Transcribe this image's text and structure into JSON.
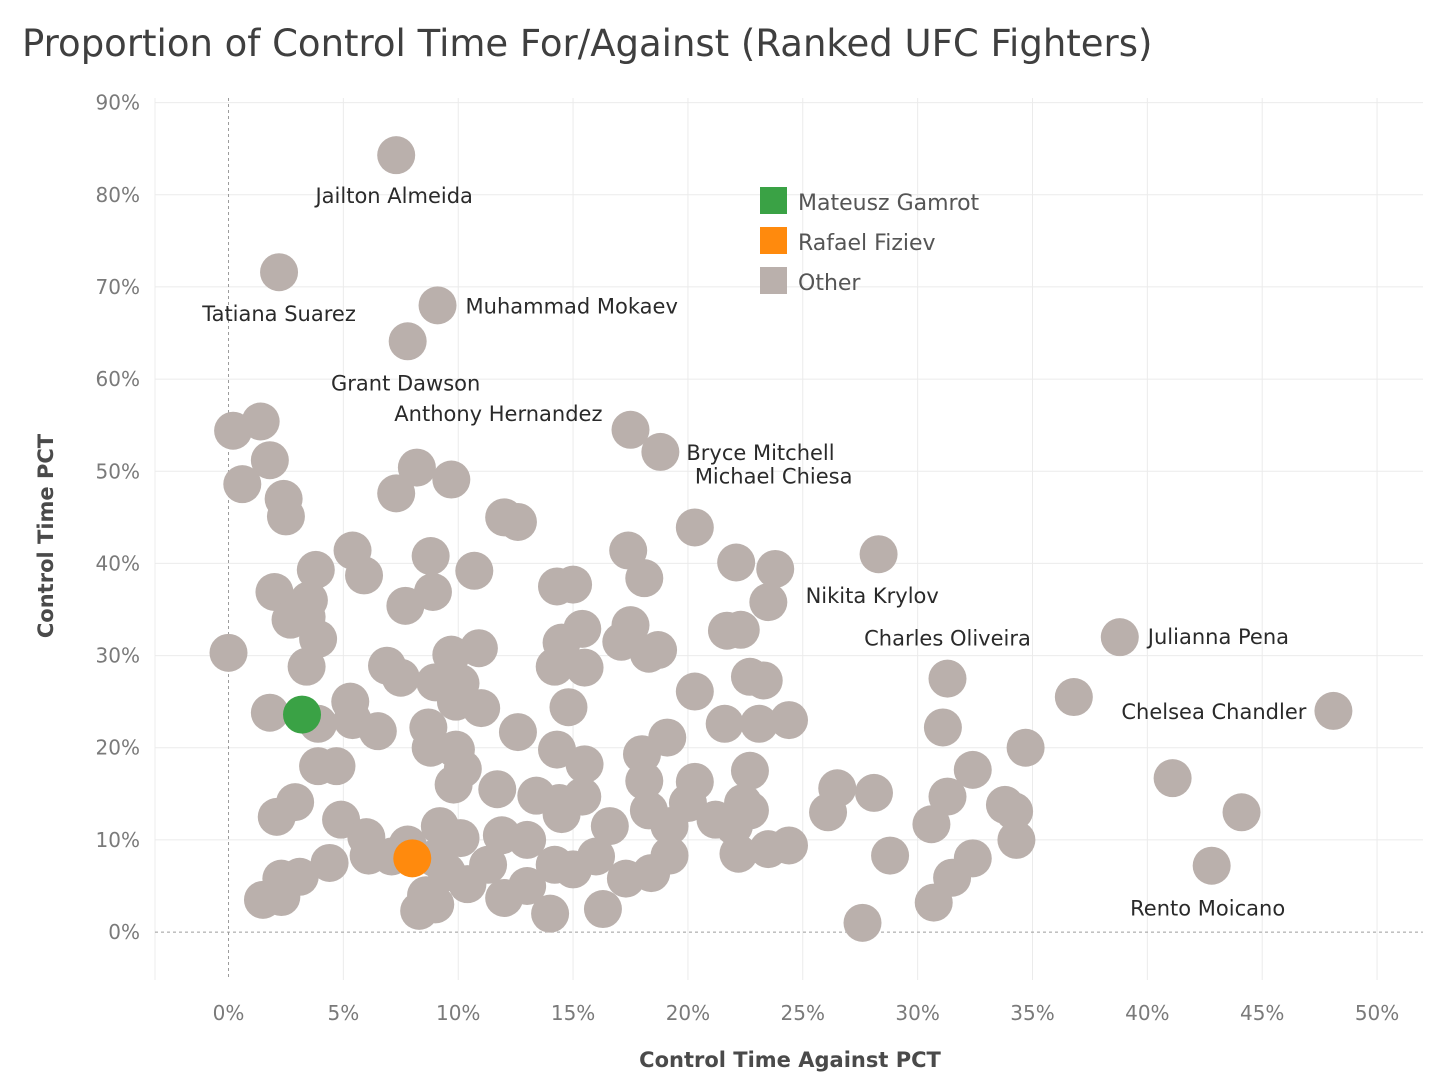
{
  "title": "Proportion of Control Time For/Against (Ranked UFC Fighters)",
  "chart_data": {
    "type": "scatter",
    "title": "Proportion of Control Time For/Against (Ranked UFC Fighters)",
    "xlabel": "Control Time Against PCT",
    "ylabel": "Control Time PCT",
    "xlim": [
      -0.032,
      0.52
    ],
    "ylim": [
      -0.052,
      0.905
    ],
    "x_ticks": [
      {
        "value": 0.0,
        "label": "0%"
      },
      {
        "value": 0.05,
        "label": "5%"
      },
      {
        "value": 0.1,
        "label": "10%"
      },
      {
        "value": 0.15,
        "label": "15%"
      },
      {
        "value": 0.2,
        "label": "20%"
      },
      {
        "value": 0.25,
        "label": "25%"
      },
      {
        "value": 0.3,
        "label": "30%"
      },
      {
        "value": 0.35,
        "label": "35%"
      },
      {
        "value": 0.4,
        "label": "40%"
      },
      {
        "value": 0.45,
        "label": "45%"
      },
      {
        "value": 0.5,
        "label": "50%"
      }
    ],
    "y_ticks": [
      {
        "value": 0.0,
        "label": "0%"
      },
      {
        "value": 0.1,
        "label": "10%"
      },
      {
        "value": 0.2,
        "label": "20%"
      },
      {
        "value": 0.3,
        "label": "30%"
      },
      {
        "value": 0.4,
        "label": "40%"
      },
      {
        "value": 0.5,
        "label": "50%"
      },
      {
        "value": 0.6,
        "label": "60%"
      },
      {
        "value": 0.7,
        "label": "70%"
      },
      {
        "value": 0.8,
        "label": "80%"
      },
      {
        "value": 0.9,
        "label": "90%"
      }
    ],
    "grid": true,
    "zero_reference_lines": true,
    "legend": {
      "placement": "top-center",
      "entries": [
        {
          "name": "Mateusz Gamrot",
          "color": "#3aa245"
        },
        {
          "name": "Rafael Fiziev",
          "color": "#ff8a0d"
        },
        {
          "name": "Other",
          "color": "#bab0ac"
        }
      ]
    },
    "series": [
      {
        "name": "Mateusz Gamrot",
        "color": "#3aa245",
        "points": [
          {
            "x": 0.032,
            "y": 0.236
          }
        ]
      },
      {
        "name": "Rafael Fiziev",
        "color": "#ff8a0d",
        "points": [
          {
            "x": 0.08,
            "y": 0.08
          }
        ]
      },
      {
        "name": "Other",
        "color": "#bab0ac",
        "points": [
          {
            "x": 0.073,
            "y": 0.843,
            "label": "Jailton Almeida"
          },
          {
            "x": 0.022,
            "y": 0.716,
            "label": "Tatiana Suarez"
          },
          {
            "x": 0.091,
            "y": 0.68,
            "label": "Muhammad Mokaev"
          },
          {
            "x": 0.078,
            "y": 0.641,
            "label": "Grant Dawson"
          },
          {
            "x": 0.175,
            "y": 0.545,
            "label": "Anthony Hernandez"
          },
          {
            "x": 0.188,
            "y": 0.521,
            "label": "Bryce Mitchell"
          },
          {
            "x": 0.203,
            "y": 0.439,
            "label": "Michael Chiesa"
          },
          {
            "x": 0.283,
            "y": 0.41,
            "label": "Nikita Krylov"
          },
          {
            "x": 0.313,
            "y": 0.275,
            "label": "Charles Oliveira"
          },
          {
            "x": 0.388,
            "y": 0.32,
            "label": "Julianna Pena"
          },
          {
            "x": 0.481,
            "y": 0.24,
            "label": "Chelsea Chandler"
          },
          {
            "x": 0.428,
            "y": 0.072,
            "label": "Rento Moicano"
          },
          {
            "x": 0.014,
            "y": 0.554
          },
          {
            "x": 0.002,
            "y": 0.544
          },
          {
            "x": 0.018,
            "y": 0.512
          },
          {
            "x": 0.006,
            "y": 0.486
          },
          {
            "x": 0.024,
            "y": 0.47
          },
          {
            "x": 0.025,
            "y": 0.451
          },
          {
            "x": 0.0,
            "y": 0.303
          },
          {
            "x": 0.02,
            "y": 0.369
          },
          {
            "x": 0.038,
            "y": 0.393
          },
          {
            "x": 0.035,
            "y": 0.36
          },
          {
            "x": 0.027,
            "y": 0.339
          },
          {
            "x": 0.034,
            "y": 0.342
          },
          {
            "x": 0.039,
            "y": 0.318
          },
          {
            "x": 0.034,
            "y": 0.288
          },
          {
            "x": 0.018,
            "y": 0.238
          },
          {
            "x": 0.039,
            "y": 0.226
          },
          {
            "x": 0.039,
            "y": 0.18
          },
          {
            "x": 0.047,
            "y": 0.18
          },
          {
            "x": 0.021,
            "y": 0.125
          },
          {
            "x": 0.029,
            "y": 0.141
          },
          {
            "x": 0.054,
            "y": 0.414
          },
          {
            "x": 0.059,
            "y": 0.387
          },
          {
            "x": 0.053,
            "y": 0.25
          },
          {
            "x": 0.054,
            "y": 0.23
          },
          {
            "x": 0.065,
            "y": 0.218
          },
          {
            "x": 0.049,
            "y": 0.122
          },
          {
            "x": 0.06,
            "y": 0.103
          },
          {
            "x": 0.061,
            "y": 0.083
          },
          {
            "x": 0.044,
            "y": 0.075
          },
          {
            "x": 0.031,
            "y": 0.06
          },
          {
            "x": 0.023,
            "y": 0.058
          },
          {
            "x": 0.015,
            "y": 0.035
          },
          {
            "x": 0.023,
            "y": 0.038
          },
          {
            "x": 0.069,
            "y": 0.289
          },
          {
            "x": 0.075,
            "y": 0.276
          },
          {
            "x": 0.077,
            "y": 0.354
          },
          {
            "x": 0.073,
            "y": 0.476
          },
          {
            "x": 0.082,
            "y": 0.504
          },
          {
            "x": 0.097,
            "y": 0.491
          },
          {
            "x": 0.088,
            "y": 0.408
          },
          {
            "x": 0.089,
            "y": 0.369
          },
          {
            "x": 0.107,
            "y": 0.392
          },
          {
            "x": 0.097,
            "y": 0.301
          },
          {
            "x": 0.109,
            "y": 0.308
          },
          {
            "x": 0.09,
            "y": 0.271
          },
          {
            "x": 0.101,
            "y": 0.27
          },
          {
            "x": 0.099,
            "y": 0.25
          },
          {
            "x": 0.11,
            "y": 0.243
          },
          {
            "x": 0.087,
            "y": 0.222
          },
          {
            "x": 0.088,
            "y": 0.2
          },
          {
            "x": 0.099,
            "y": 0.198
          },
          {
            "x": 0.102,
            "y": 0.177
          },
          {
            "x": 0.098,
            "y": 0.16
          },
          {
            "x": 0.092,
            "y": 0.115
          },
          {
            "x": 0.101,
            "y": 0.102
          },
          {
            "x": 0.078,
            "y": 0.095
          },
          {
            "x": 0.071,
            "y": 0.082
          },
          {
            "x": 0.09,
            "y": 0.08
          },
          {
            "x": 0.095,
            "y": 0.065
          },
          {
            "x": 0.104,
            "y": 0.052
          },
          {
            "x": 0.086,
            "y": 0.04
          },
          {
            "x": 0.09,
            "y": 0.03
          },
          {
            "x": 0.083,
            "y": 0.023
          },
          {
            "x": 0.12,
            "y": 0.45
          },
          {
            "x": 0.126,
            "y": 0.445
          },
          {
            "x": 0.126,
            "y": 0.217
          },
          {
            "x": 0.117,
            "y": 0.155
          },
          {
            "x": 0.119,
            "y": 0.105
          },
          {
            "x": 0.13,
            "y": 0.1
          },
          {
            "x": 0.113,
            "y": 0.073
          },
          {
            "x": 0.13,
            "y": 0.05
          },
          {
            "x": 0.12,
            "y": 0.037
          },
          {
            "x": 0.14,
            "y": 0.02
          },
          {
            "x": 0.143,
            "y": 0.375
          },
          {
            "x": 0.15,
            "y": 0.377
          },
          {
            "x": 0.145,
            "y": 0.314
          },
          {
            "x": 0.154,
            "y": 0.329
          },
          {
            "x": 0.142,
            "y": 0.288
          },
          {
            "x": 0.155,
            "y": 0.287
          },
          {
            "x": 0.148,
            "y": 0.244
          },
          {
            "x": 0.143,
            "y": 0.198
          },
          {
            "x": 0.155,
            "y": 0.182
          },
          {
            "x": 0.134,
            "y": 0.148
          },
          {
            "x": 0.144,
            "y": 0.14
          },
          {
            "x": 0.154,
            "y": 0.147
          },
          {
            "x": 0.145,
            "y": 0.128
          },
          {
            "x": 0.142,
            "y": 0.073
          },
          {
            "x": 0.15,
            "y": 0.068
          },
          {
            "x": 0.16,
            "y": 0.082
          },
          {
            "x": 0.166,
            "y": 0.115
          },
          {
            "x": 0.163,
            "y": 0.025
          },
          {
            "x": 0.174,
            "y": 0.414
          },
          {
            "x": 0.181,
            "y": 0.384
          },
          {
            "x": 0.171,
            "y": 0.315
          },
          {
            "x": 0.175,
            "y": 0.333
          },
          {
            "x": 0.183,
            "y": 0.302
          },
          {
            "x": 0.187,
            "y": 0.306
          },
          {
            "x": 0.18,
            "y": 0.193
          },
          {
            "x": 0.191,
            "y": 0.211
          },
          {
            "x": 0.181,
            "y": 0.164
          },
          {
            "x": 0.183,
            "y": 0.132
          },
          {
            "x": 0.192,
            "y": 0.115
          },
          {
            "x": 0.192,
            "y": 0.083
          },
          {
            "x": 0.173,
            "y": 0.058
          },
          {
            "x": 0.184,
            "y": 0.064
          },
          {
            "x": 0.203,
            "y": 0.261
          },
          {
            "x": 0.221,
            "y": 0.401
          },
          {
            "x": 0.238,
            "y": 0.394
          },
          {
            "x": 0.235,
            "y": 0.358
          },
          {
            "x": 0.217,
            "y": 0.327
          },
          {
            "x": 0.223,
            "y": 0.328
          },
          {
            "x": 0.227,
            "y": 0.277
          },
          {
            "x": 0.233,
            "y": 0.273
          },
          {
            "x": 0.216,
            "y": 0.226
          },
          {
            "x": 0.231,
            "y": 0.226
          },
          {
            "x": 0.244,
            "y": 0.23
          },
          {
            "x": 0.227,
            "y": 0.175
          },
          {
            "x": 0.203,
            "y": 0.163
          },
          {
            "x": 0.2,
            "y": 0.14
          },
          {
            "x": 0.212,
            "y": 0.122
          },
          {
            "x": 0.224,
            "y": 0.14
          },
          {
            "x": 0.227,
            "y": 0.132
          },
          {
            "x": 0.22,
            "y": 0.115
          },
          {
            "x": 0.222,
            "y": 0.085
          },
          {
            "x": 0.235,
            "y": 0.09
          },
          {
            "x": 0.244,
            "y": 0.094
          },
          {
            "x": 0.265,
            "y": 0.156
          },
          {
            "x": 0.261,
            "y": 0.13
          },
          {
            "x": 0.281,
            "y": 0.151
          },
          {
            "x": 0.288,
            "y": 0.083
          },
          {
            "x": 0.276,
            "y": 0.01
          },
          {
            "x": 0.311,
            "y": 0.222
          },
          {
            "x": 0.313,
            "y": 0.147
          },
          {
            "x": 0.306,
            "y": 0.117
          },
          {
            "x": 0.324,
            "y": 0.176
          },
          {
            "x": 0.324,
            "y": 0.08
          },
          {
            "x": 0.315,
            "y": 0.059
          },
          {
            "x": 0.307,
            "y": 0.032
          },
          {
            "x": 0.338,
            "y": 0.138
          },
          {
            "x": 0.342,
            "y": 0.131
          },
          {
            "x": 0.343,
            "y": 0.1
          },
          {
            "x": 0.347,
            "y": 0.2
          },
          {
            "x": 0.368,
            "y": 0.255
          },
          {
            "x": 0.411,
            "y": 0.167
          },
          {
            "x": 0.441,
            "y": 0.13
          }
        ]
      }
    ]
  }
}
